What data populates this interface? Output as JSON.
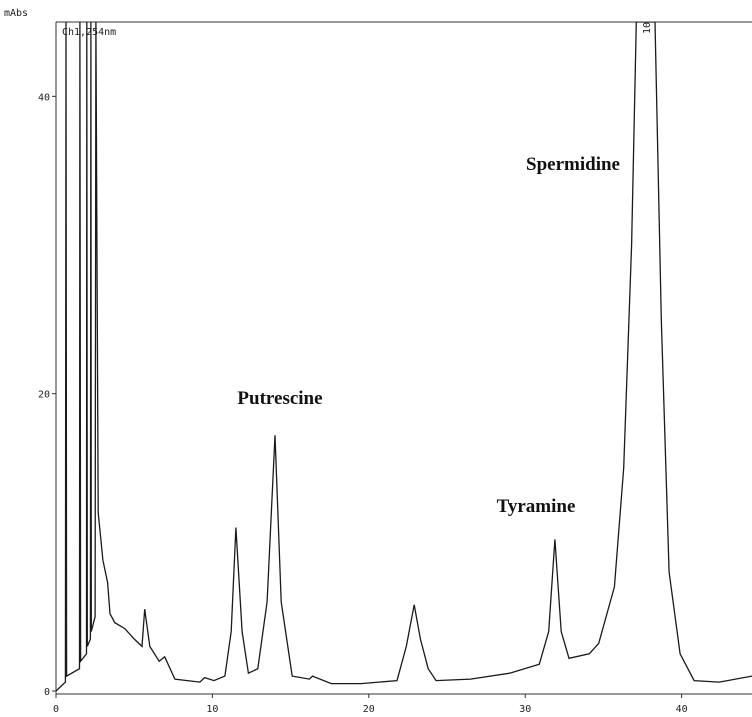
{
  "chart_data": {
    "type": "line",
    "y_label": "mAbs",
    "subtitle": "Ch1,254nm",
    "annotations": [
      "Putrescine",
      "Tyramine",
      "Spermidine",
      "10"
    ],
    "x": [
      0,
      0.3,
      0.6,
      0.64,
      0.68,
      1.5,
      1.53,
      1.57,
      1.95,
      1.97,
      2.0,
      2.2,
      2.23,
      2.26,
      2.5,
      2.55,
      2.7,
      3.0,
      3.3,
      3.45,
      3.75,
      4.4,
      5.0,
      5.5,
      5.67,
      6.0,
      6.6,
      6.95,
      7.6,
      9.2,
      9.5,
      10.1,
      10.8,
      11.2,
      11.5,
      11.9,
      12.3,
      12.9,
      13.5,
      14.0,
      14.4,
      15.1,
      16.2,
      16.4,
      17.6,
      19.5,
      21.8,
      22.4,
      22.9,
      23.3,
      23.8,
      24.3,
      26.5,
      29.0,
      30.9,
      31.5,
      31.9,
      32.3,
      32.8,
      34.1,
      34.7,
      35.7,
      36.3,
      36.8,
      37.1,
      38.3,
      38.7,
      39.2,
      39.9,
      40.8,
      42.4,
      44.5
    ],
    "values": [
      0,
      0.3,
      0.6,
      45,
      1,
      1.5,
      45,
      2,
      2.5,
      45,
      3,
      3.5,
      45,
      4,
      5,
      45,
      12,
      8.8,
      7.3,
      5.2,
      4.6,
      4.2,
      3.5,
      3.0,
      5.5,
      3.0,
      2.0,
      2.3,
      0.8,
      0.6,
      0.9,
      0.7,
      1.0,
      4,
      11.0,
      4,
      1.2,
      1.5,
      6,
      17.2,
      6,
      1.0,
      0.8,
      1.0,
      0.5,
      0.5,
      0.7,
      3,
      5.8,
      3.5,
      1.5,
      0.7,
      0.8,
      1.2,
      1.8,
      4,
      10.2,
      4,
      2.2,
      2.5,
      3.2,
      7,
      15,
      30,
      45,
      45,
      25,
      8,
      2.5,
      0.7,
      0.6,
      1.0
    ],
    "color": "#1a1a1a",
    "xlim": [
      0,
      44.5
    ],
    "ylim": [
      0,
      45
    ],
    "xticks": [
      0,
      10,
      20,
      30,
      40
    ],
    "yticks": [
      0,
      20,
      40
    ]
  }
}
